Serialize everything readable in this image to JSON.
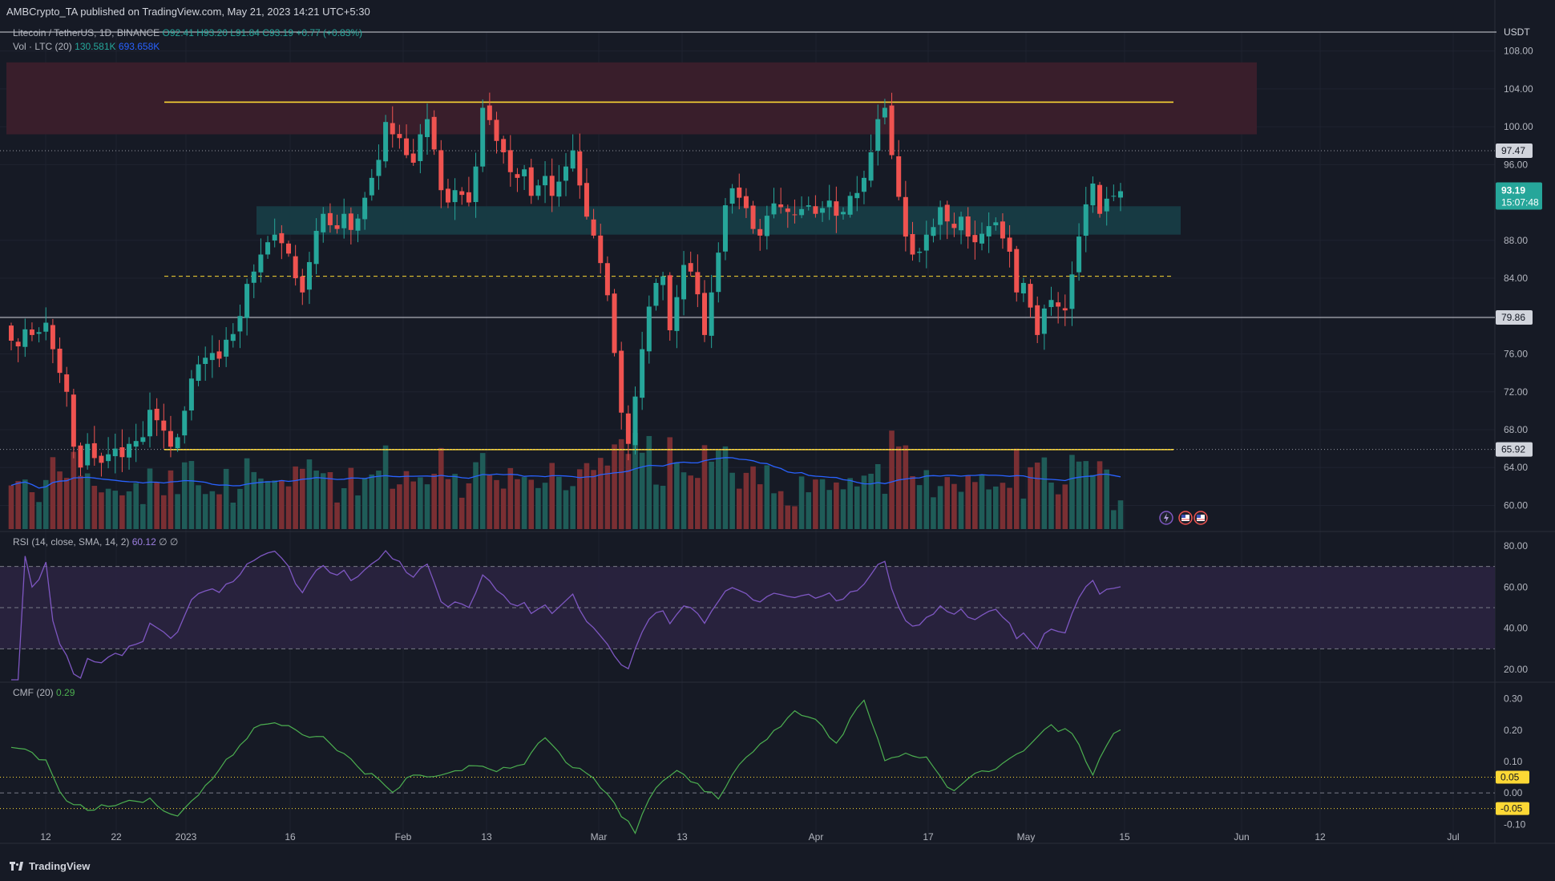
{
  "header": {
    "published": "AMBCrypto_TA published on TradingView.com, May 21, 2023 14:21 UTC+5:30",
    "symbol": "Litecoin / TetherUS, 1D, BINANCE",
    "ohlc": "O92.41 H93.20 L91.84 C93.19 +0.77 (+0.83%)",
    "vol_label": "Vol · LTC (20)",
    "vol_value_1": "130.581K",
    "vol_value_2": "693.658K",
    "currency": "USDT"
  },
  "rsi_legend": {
    "label": "RSI (14, close, SMA, 14, 2)",
    "value": "60.12",
    "extra": "∅ ∅"
  },
  "cmf_legend": {
    "label": "CMF (20)",
    "value": "0.29"
  },
  "footer": {
    "brand": "TradingView"
  },
  "colors": {
    "bg": "#161a25",
    "up": "#26a69a",
    "down": "#ef5350",
    "vol_up": "#1f5c58",
    "vol_down": "#7a2f33",
    "vol_ma": "#2962ff",
    "yellow": "#fdd835",
    "resistance_zone": "#3b1f2b",
    "support_zone": "#173c44",
    "rsi": "#7e57c2",
    "rsi_band": "#2a2440",
    "cmf": "#4caf50",
    "grid": "#1f2330",
    "label_bg": "#fdd835"
  },
  "chart_data": {
    "type": "candlestick",
    "title": "Litecoin / TetherUS, 1D, BINANCE",
    "x_ticks": [
      "12",
      "22",
      "2023",
      "16",
      "Feb",
      "13",
      "Mar",
      "13",
      "Apr",
      "17",
      "May",
      "15",
      "Jun",
      "12",
      "Jul"
    ],
    "price_axis": {
      "ticks": [
        "108.00",
        "104.00",
        "100.00",
        "96.00",
        "88.00",
        "84.00",
        "80.00",
        "76.00",
        "72.00",
        "68.00",
        "64.00",
        "60.00"
      ],
      "range": [
        57.5,
        110
      ]
    },
    "price_labels": [
      {
        "text": "97.47",
        "value": 97.47,
        "style": "dotted"
      },
      {
        "text": "79.86",
        "value": 79.86,
        "style": "solid"
      },
      {
        "text": "65.92",
        "value": 65.92,
        "style": "dotted"
      }
    ],
    "current_price": {
      "text": "93.19",
      "countdown": "15:07:48",
      "value": 93.19
    },
    "levels": [
      {
        "name": "range-high",
        "value": 102.6,
        "style": "yellow"
      },
      {
        "name": "mid-range",
        "value": 84.2,
        "style": "yellow-dashed"
      },
      {
        "name": "range-low",
        "value": 65.9,
        "style": "yellow"
      }
    ],
    "zones": [
      {
        "name": "bearish-order-block",
        "from": 99.2,
        "to": 106.8
      },
      {
        "name": "support-zone",
        "from": 88.6,
        "to": 91.6
      }
    ],
    "closes": [
      77.4,
      76.8,
      78.6,
      78.0,
      78.3,
      79.3,
      76.5,
      74.0,
      72.0,
      66.2,
      64.0,
      66.5,
      65.0,
      64.5,
      65.4,
      66.0,
      65.1,
      66.5,
      66.8,
      67.2,
      70.1,
      69.0,
      67.9,
      66.2,
      67.2,
      70.0,
      73.4,
      74.9,
      75.6,
      76.1,
      75.5,
      77.5,
      78.1,
      80.0,
      83.4,
      84.7,
      86.5,
      87.8,
      88.6,
      87.7,
      86.6,
      84.0,
      82.5,
      85.7,
      89.0,
      90.8,
      89.6,
      89.2,
      90.8,
      89.1,
      90.3,
      92.5,
      94.6,
      96.5,
      100.5,
      99.2,
      98.8,
      97.0,
      96.2,
      99.2,
      100.8,
      97.6,
      93.3,
      92.0,
      93.3,
      92.8,
      92.0,
      95.8,
      102.0,
      100.7,
      98.5,
      97.3,
      95.2,
      94.6,
      95.5,
      92.7,
      93.8,
      94.8,
      92.7,
      94.2,
      95.8,
      97.5,
      93.8,
      90.5,
      88.5,
      85.6,
      82.2,
      76.1,
      69.8,
      66.5,
      71.5,
      76.5,
      81.0,
      83.5,
      84.2,
      78.5,
      82.0,
      85.4,
      84.7,
      82.3,
      78.0,
      82.5,
      86.7,
      91.7,
      93.5,
      92.5,
      91.4,
      89.2,
      88.5,
      90.6,
      91.9,
      91.5,
      91.0,
      90.7,
      91.3,
      91.7,
      90.8,
      91.4,
      92.2,
      90.6,
      91.0,
      92.7,
      93.0,
      94.6,
      97.3,
      100.8,
      102.0,
      97.0,
      92.6,
      88.4,
      86.5,
      86.8,
      88.6,
      89.4,
      91.5,
      90.0,
      89.3,
      90.5,
      88.4,
      87.8,
      88.7,
      89.5,
      89.9,
      88.2,
      86.8,
      82.5,
      83.5,
      80.9,
      78.0,
      80.8,
      81.7,
      81.0,
      80.6,
      84.4,
      88.4,
      91.8,
      94.0,
      90.8,
      92.4,
      92.7,
      93.19
    ],
    "rsi": {
      "axis_ticks": [
        "80.00",
        "60.00",
        "40.00",
        "20.00"
      ],
      "bands": [
        70,
        50,
        30
      ],
      "last": 60.12
    },
    "cmf": {
      "axis_ticks": [
        "0.30",
        "0.20",
        "0.10",
        "0.00",
        "-0.10"
      ],
      "levels": [
        {
          "text": "0.05",
          "value": 0.05
        },
        {
          "text": "-0.05",
          "value": -0.05
        }
      ],
      "last": 0.29,
      "anchors": [
        [
          0,
          0.15
        ],
        [
          5,
          0.1
        ],
        [
          8,
          -0.03
        ],
        [
          11,
          -0.05
        ],
        [
          16,
          -0.03
        ],
        [
          20,
          -0.02
        ],
        [
          24,
          -0.08
        ],
        [
          27,
          0.0
        ],
        [
          31,
          0.1
        ],
        [
          35,
          0.2
        ],
        [
          38,
          0.23
        ],
        [
          41,
          0.2
        ],
        [
          45,
          0.17
        ],
        [
          48,
          0.12
        ],
        [
          51,
          0.07
        ],
        [
          55,
          0.01
        ],
        [
          58,
          0.06
        ],
        [
          62,
          0.05
        ],
        [
          66,
          0.09
        ],
        [
          70,
          0.07
        ],
        [
          74,
          0.1
        ],
        [
          77,
          0.18
        ],
        [
          80,
          0.1
        ],
        [
          84,
          0.05
        ],
        [
          87,
          -0.04
        ],
        [
          90,
          -0.12
        ],
        [
          93,
          0.02
        ],
        [
          96,
          0.07
        ],
        [
          99,
          0.03
        ],
        [
          102,
          -0.02
        ],
        [
          106,
          0.12
        ],
        [
          110,
          0.2
        ],
        [
          113,
          0.26
        ],
        [
          116,
          0.23
        ],
        [
          119,
          0.16
        ],
        [
          123,
          0.3
        ],
        [
          126,
          0.1
        ],
        [
          129,
          0.13
        ],
        [
          132,
          0.11
        ],
        [
          136,
          0.0
        ],
        [
          139,
          0.06
        ],
        [
          143,
          0.09
        ],
        [
          146,
          0.14
        ],
        [
          150,
          0.21
        ],
        [
          153,
          0.19
        ],
        [
          156,
          0.06
        ],
        [
          159,
          0.19
        ],
        [
          162,
          0.25
        ],
        [
          165,
          0.22
        ],
        [
          168,
          0.3
        ],
        [
          170,
          0.3
        ]
      ]
    }
  }
}
